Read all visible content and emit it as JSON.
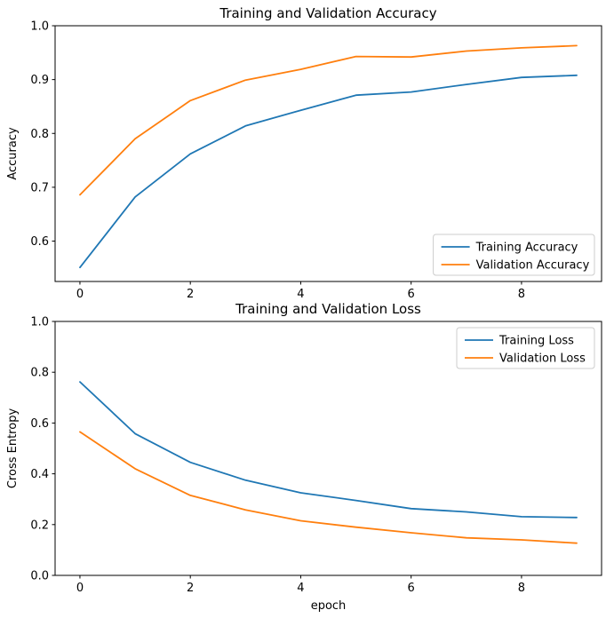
{
  "colors": {
    "training": "#1f77b4",
    "validation": "#ff7f0e",
    "axis": "#000000",
    "legend_border": "#cccccc",
    "background": "#ffffff"
  },
  "chart_data": [
    {
      "type": "line",
      "title": "Training and Validation Accuracy",
      "xlabel": "",
      "ylabel": "Accuracy",
      "x": [
        0,
        1,
        2,
        3,
        4,
        5,
        6,
        7,
        8,
        9
      ],
      "series": [
        {
          "name": "Training Accuracy",
          "color": "#1f77b4",
          "values": [
            0.551,
            0.682,
            0.762,
            0.814,
            0.843,
            0.871,
            0.877,
            0.891,
            0.904,
            0.908
          ]
        },
        {
          "name": "Validation Accuracy",
          "color": "#ff7f0e",
          "values": [
            0.686,
            0.79,
            0.861,
            0.899,
            0.919,
            0.943,
            0.942,
            0.953,
            0.959,
            0.963
          ]
        }
      ],
      "xlim": [
        -0.45,
        9.45
      ],
      "ylim": [
        0.525,
        1.0
      ],
      "xticks": [
        0,
        2,
        4,
        6,
        8
      ],
      "xticklabels": [
        "0",
        "2",
        "4",
        "6",
        "8"
      ],
      "yticks": [
        0.6,
        0.7,
        0.8,
        0.9,
        1.0
      ],
      "yticklabels": [
        "0.6",
        "0.7",
        "0.8",
        "0.9",
        "1.0"
      ],
      "legend_position": "lower-right",
      "legend": [
        "Training Accuracy",
        "Validation Accuracy"
      ],
      "grid": false
    },
    {
      "type": "line",
      "title": "Training and Validation Loss",
      "xlabel": "epoch",
      "ylabel": "Cross Entropy",
      "x": [
        0,
        1,
        2,
        3,
        4,
        5,
        6,
        7,
        8,
        9
      ],
      "series": [
        {
          "name": "Training Loss",
          "color": "#1f77b4",
          "values": [
            0.762,
            0.558,
            0.445,
            0.375,
            0.325,
            0.295,
            0.263,
            0.25,
            0.231,
            0.228
          ]
        },
        {
          "name": "Validation Loss",
          "color": "#ff7f0e",
          "values": [
            0.565,
            0.42,
            0.315,
            0.258,
            0.215,
            0.19,
            0.168,
            0.148,
            0.14,
            0.127
          ]
        }
      ],
      "xlim": [
        -0.45,
        9.45
      ],
      "ylim": [
        0.0,
        1.0
      ],
      "xticks": [
        0,
        2,
        4,
        6,
        8
      ],
      "xticklabels": [
        "0",
        "2",
        "4",
        "6",
        "8"
      ],
      "yticks": [
        0.0,
        0.2,
        0.4,
        0.6,
        0.8,
        1.0
      ],
      "yticklabels": [
        "0.0",
        "0.2",
        "0.4",
        "0.6",
        "0.8",
        "1.0"
      ],
      "legend_position": "upper-right",
      "legend": [
        "Training Loss",
        "Validation Loss"
      ],
      "grid": false
    }
  ]
}
